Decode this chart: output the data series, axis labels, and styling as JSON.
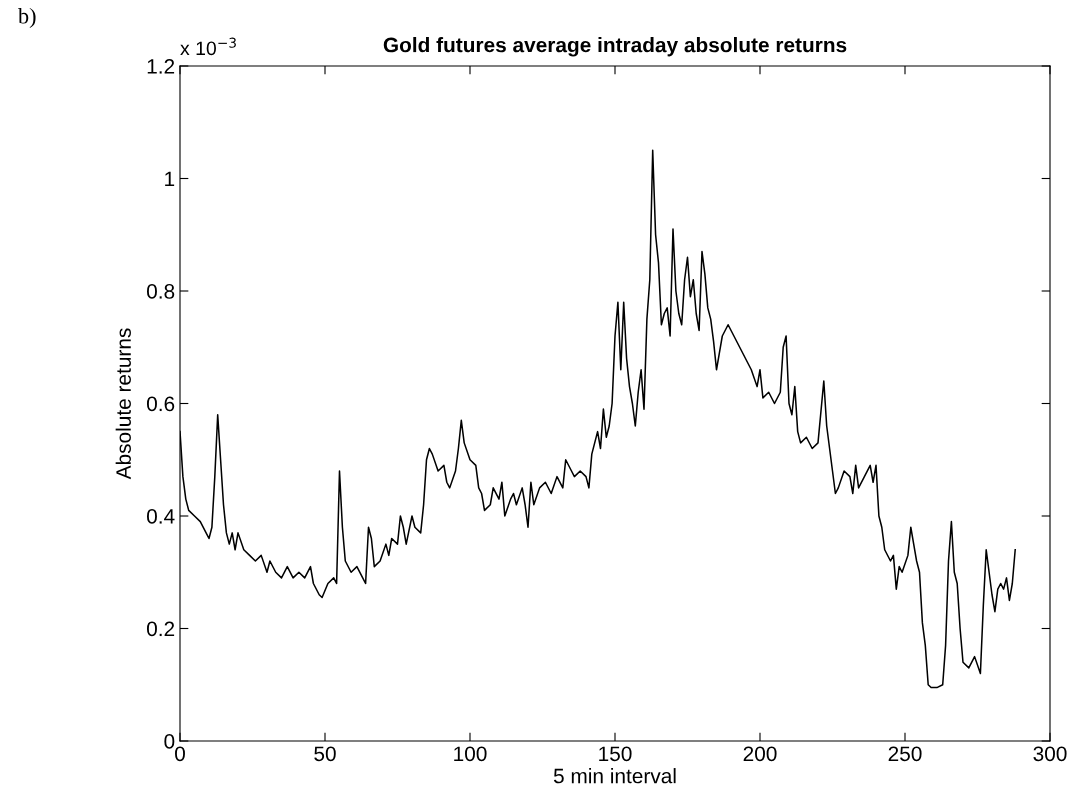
{
  "chart_data": {
    "type": "line",
    "title": "Gold futures average intraday absolute returns",
    "xlabel": "5 min interval",
    "ylabel": "Absolute returns",
    "annotations": [
      "b)",
      "x 10$^{−3}$"
    ],
    "xlim": [
      0,
      300
    ],
    "xticks": [
      0,
      50,
      100,
      150,
      200,
      250,
      300
    ],
    "ylim": [
      0,
      1.2
    ],
    "yticks": [
      0,
      0.2,
      0.4,
      0.6,
      0.8,
      1,
      1.2
    ],
    "grid": false,
    "legend": false,
    "marker": "none",
    "line_style": "solid",
    "series": [
      {
        "color": "#000000",
        "x": [
          0,
          1,
          2,
          3,
          5,
          7,
          9,
          10,
          11,
          12,
          13,
          14,
          15,
          16,
          17,
          18,
          19,
          20,
          22,
          24,
          26,
          28,
          30,
          31,
          33,
          35,
          37,
          39,
          41,
          43,
          45,
          46,
          48,
          49,
          51,
          53,
          54,
          55,
          56,
          57,
          59,
          61,
          63,
          64,
          65,
          66,
          67,
          69,
          71,
          72,
          73,
          75,
          76,
          77,
          78,
          80,
          81,
          83,
          84,
          85,
          86,
          87,
          89,
          91,
          92,
          93,
          95,
          96,
          97,
          98,
          100,
          102,
          103,
          104,
          105,
          107,
          108,
          110,
          111,
          112,
          114,
          115,
          116,
          118,
          119,
          120,
          121,
          122,
          124,
          126,
          128,
          130,
          132,
          133,
          135,
          136,
          138,
          140,
          141,
          142,
          144,
          145,
          146,
          147,
          148,
          149,
          150,
          151,
          152,
          153,
          154,
          155,
          156,
          157,
          158,
          159,
          160,
          161,
          162,
          163,
          164,
          165,
          166,
          167,
          168,
          169,
          170,
          171,
          172,
          173,
          174,
          175,
          176,
          177,
          178,
          179,
          180,
          181,
          182,
          183,
          184,
          185,
          186,
          187,
          189,
          191,
          193,
          195,
          197,
          199,
          200,
          201,
          203,
          205,
          207,
          208,
          209,
          210,
          211,
          212,
          213,
          214,
          216,
          218,
          220,
          222,
          223,
          224,
          225,
          226,
          227,
          229,
          231,
          232,
          233,
          234,
          236,
          238,
          239,
          240,
          241,
          242,
          243,
          245,
          246,
          247,
          248,
          249,
          251,
          252,
          253,
          254,
          255,
          256,
          257,
          258,
          259,
          261,
          263,
          264,
          265,
          266,
          267,
          268,
          269,
          270,
          272,
          274,
          276,
          277,
          278,
          279,
          280,
          281,
          282,
          283,
          284,
          285,
          286,
          287,
          288
        ],
        "values": [
          0.55,
          0.47,
          0.43,
          0.41,
          0.4,
          0.39,
          0.37,
          0.36,
          0.38,
          0.47,
          0.58,
          0.5,
          0.42,
          0.37,
          0.35,
          0.37,
          0.34,
          0.37,
          0.34,
          0.33,
          0.32,
          0.33,
          0.3,
          0.32,
          0.3,
          0.29,
          0.31,
          0.29,
          0.3,
          0.29,
          0.31,
          0.28,
          0.26,
          0.255,
          0.28,
          0.29,
          0.28,
          0.48,
          0.38,
          0.32,
          0.3,
          0.31,
          0.29,
          0.28,
          0.38,
          0.36,
          0.31,
          0.32,
          0.35,
          0.33,
          0.36,
          0.35,
          0.4,
          0.38,
          0.35,
          0.4,
          0.38,
          0.37,
          0.42,
          0.5,
          0.52,
          0.51,
          0.48,
          0.49,
          0.46,
          0.45,
          0.48,
          0.52,
          0.57,
          0.53,
          0.5,
          0.49,
          0.45,
          0.44,
          0.41,
          0.42,
          0.45,
          0.43,
          0.46,
          0.4,
          0.43,
          0.44,
          0.42,
          0.45,
          0.42,
          0.38,
          0.46,
          0.42,
          0.45,
          0.46,
          0.44,
          0.47,
          0.45,
          0.5,
          0.48,
          0.47,
          0.48,
          0.47,
          0.45,
          0.51,
          0.55,
          0.52,
          0.59,
          0.54,
          0.56,
          0.6,
          0.72,
          0.78,
          0.66,
          0.78,
          0.68,
          0.63,
          0.6,
          0.56,
          0.62,
          0.66,
          0.59,
          0.75,
          0.82,
          1.05,
          0.9,
          0.85,
          0.74,
          0.76,
          0.77,
          0.72,
          0.91,
          0.8,
          0.76,
          0.74,
          0.82,
          0.86,
          0.79,
          0.82,
          0.76,
          0.73,
          0.87,
          0.83,
          0.77,
          0.75,
          0.71,
          0.66,
          0.69,
          0.72,
          0.74,
          0.72,
          0.7,
          0.68,
          0.66,
          0.63,
          0.66,
          0.61,
          0.62,
          0.6,
          0.62,
          0.7,
          0.72,
          0.6,
          0.58,
          0.63,
          0.55,
          0.53,
          0.54,
          0.52,
          0.53,
          0.64,
          0.56,
          0.52,
          0.48,
          0.44,
          0.45,
          0.48,
          0.47,
          0.44,
          0.49,
          0.45,
          0.47,
          0.49,
          0.46,
          0.49,
          0.4,
          0.38,
          0.34,
          0.32,
          0.33,
          0.27,
          0.31,
          0.3,
          0.33,
          0.38,
          0.35,
          0.32,
          0.3,
          0.21,
          0.17,
          0.1,
          0.095,
          0.095,
          0.1,
          0.17,
          0.32,
          0.39,
          0.3,
          0.28,
          0.2,
          0.14,
          0.13,
          0.15,
          0.12,
          0.24,
          0.34,
          0.3,
          0.26,
          0.23,
          0.27,
          0.28,
          0.27,
          0.29,
          0.25,
          0.28,
          0.34
        ]
      }
    ]
  }
}
